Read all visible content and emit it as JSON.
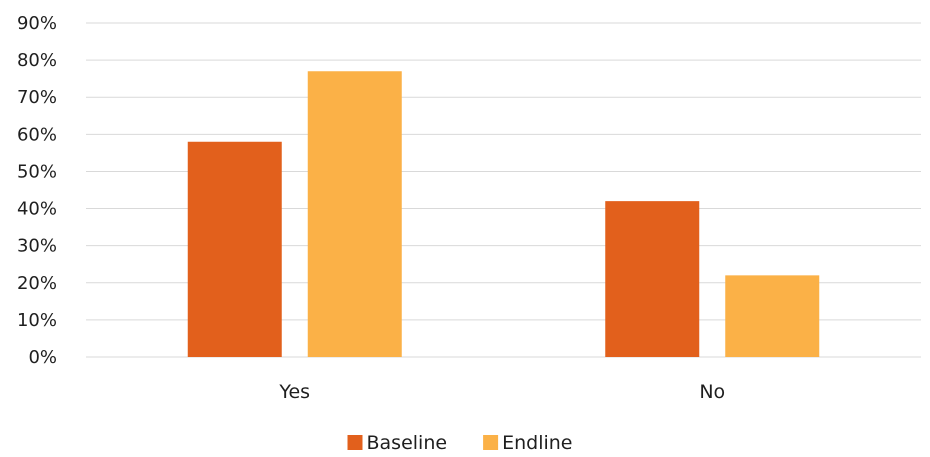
{
  "chart_data": {
    "type": "bar",
    "title": "",
    "xlabel": "",
    "ylabel": "",
    "categories": [
      "Yes",
      "No"
    ],
    "series": [
      {
        "name": "Baseline",
        "values": [
          0.58,
          0.42
        ],
        "color": "#E2601C"
      },
      {
        "name": "Endline",
        "values": [
          0.77,
          0.22
        ],
        "color": "#FBB147"
      }
    ],
    "ylim": [
      0,
      0.9
    ],
    "yticks": [
      0,
      0.1,
      0.2,
      0.3,
      0.4,
      0.5,
      0.6,
      0.7,
      0.8,
      0.9
    ],
    "ytick_labels": [
      "0%",
      "10%",
      "20%",
      "30%",
      "40%",
      "50%",
      "60%",
      "70%",
      "80%",
      "90%"
    ],
    "grid": true,
    "legend_position": "bottom"
  }
}
